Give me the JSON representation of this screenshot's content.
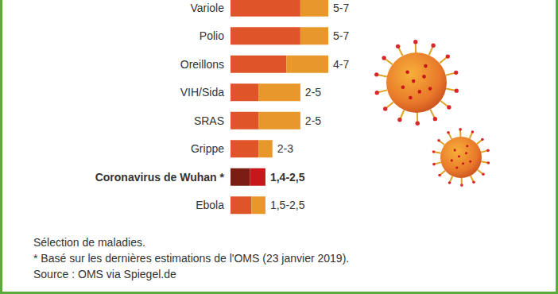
{
  "chart_data": {
    "type": "bar",
    "orientation": "horizontal",
    "categories": [
      "Variole",
      "Polio",
      "Oreillons",
      "VIH/Sida",
      "SRAS",
      "Grippe",
      "Coronavirus de Wuhan *",
      "Ebola"
    ],
    "series": [
      {
        "values": [
          5,
          5,
          4,
          2,
          2,
          2,
          1.4,
          1.5
        ],
        "colors": [
          "#e0542a",
          "#e0542a",
          "#e0542a",
          "#e0542a",
          "#e0542a",
          "#e0542a",
          "#7b1d12",
          "#e0542a"
        ]
      },
      {
        "values": [
          [
            5,
            7
          ],
          [
            5,
            7
          ],
          [
            4,
            7
          ],
          [
            2,
            5
          ],
          [
            2,
            5
          ],
          [
            2,
            3
          ],
          [
            1.4,
            2.5
          ],
          [
            1.5,
            2.5
          ]
        ],
        "colors": [
          "#e8972b",
          "#e8972b",
          "#e8972b",
          "#e8972b",
          "#e8972b",
          "#e8972b",
          "#c8161d",
          "#e8972b"
        ],
        "value_labels": [
          "5-7",
          "5-7",
          "4-7",
          "2-5",
          "2-5",
          "2-3",
          "1,4-2,5",
          "1,5-2,5"
        ]
      }
    ],
    "xlim": [
      0,
      7
    ],
    "tick_labels": false,
    "data_labels": true,
    "notes": [
      "Sélection de maladies.",
      "* Basé sur les dernières estimations de l'OMS (23 janvier 2019).",
      "Source : OMS via Spiegel.de"
    ]
  }
}
